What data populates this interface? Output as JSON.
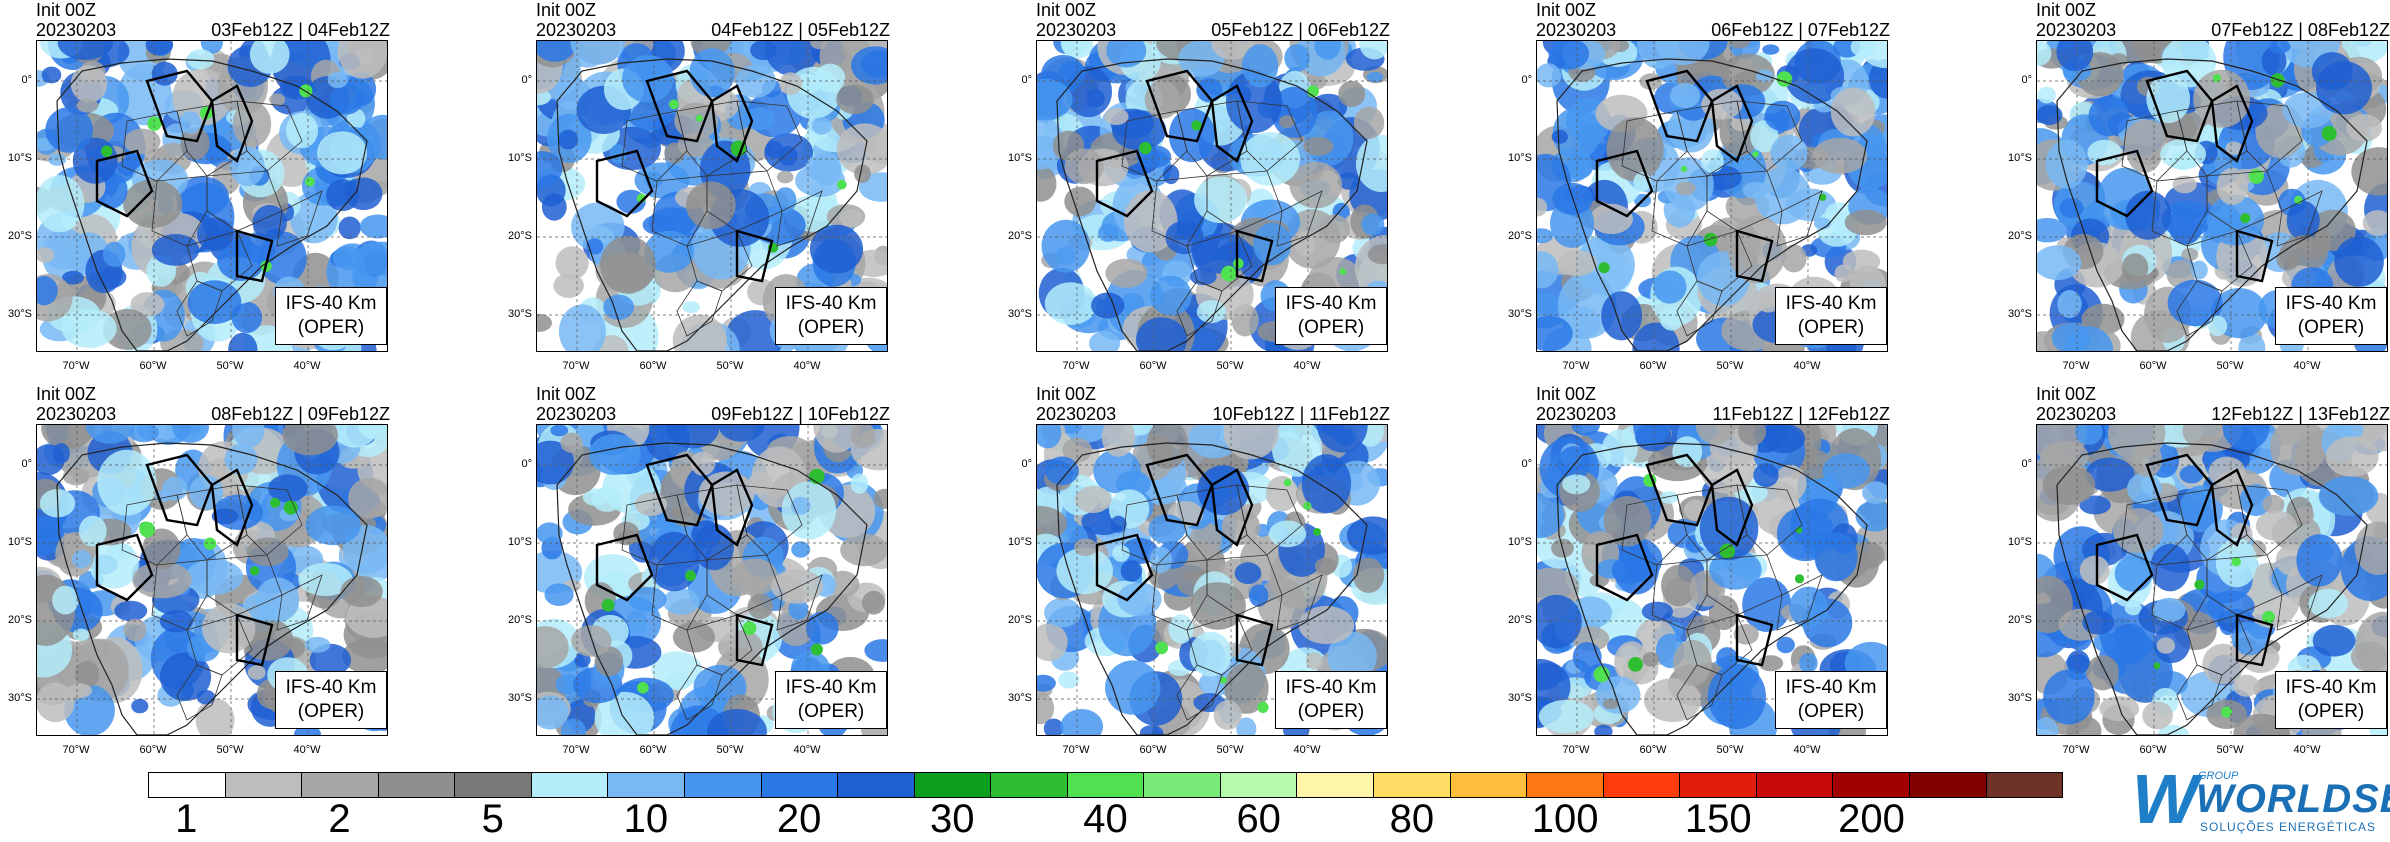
{
  "panels": [
    {
      "init": "Init 00Z",
      "date": "20230203",
      "valid": "03Feb12Z | 04Feb12Z",
      "model": "IFS-40 Km",
      "mode": "(OPER)"
    },
    {
      "init": "Init 00Z",
      "date": "20230203",
      "valid": "04Feb12Z | 05Feb12Z",
      "model": "IFS-40 Km",
      "mode": "(OPER)"
    },
    {
      "init": "Init 00Z",
      "date": "20230203",
      "valid": "05Feb12Z | 06Feb12Z",
      "model": "IFS-40 Km",
      "mode": "(OPER)"
    },
    {
      "init": "Init 00Z",
      "date": "20230203",
      "valid": "06Feb12Z | 07Feb12Z",
      "model": "IFS-40 Km",
      "mode": "(OPER)"
    },
    {
      "init": "Init 00Z",
      "date": "20230203",
      "valid": "07Feb12Z | 08Feb12Z",
      "model": "IFS-40 Km",
      "mode": "(OPER)"
    },
    {
      "init": "Init 00Z",
      "date": "20230203",
      "valid": "08Feb12Z | 09Feb12Z",
      "model": "IFS-40 Km",
      "mode": "(OPER)"
    },
    {
      "init": "Init 00Z",
      "date": "20230203",
      "valid": "09Feb12Z | 10Feb12Z",
      "model": "IFS-40 Km",
      "mode": "(OPER)"
    },
    {
      "init": "Init 00Z",
      "date": "20230203",
      "valid": "10Feb12Z | 11Feb12Z",
      "model": "IFS-40 Km",
      "mode": "(OPER)"
    },
    {
      "init": "Init 00Z",
      "date": "20230203",
      "valid": "11Feb12Z | 12Feb12Z",
      "model": "IFS-40 Km",
      "mode": "(OPER)"
    },
    {
      "init": "Init 00Z",
      "date": "20230203",
      "valid": "12Feb12Z | 13Feb12Z",
      "model": "IFS-40 Km",
      "mode": "(OPER)"
    }
  ],
  "lat_labels": [
    "0°",
    "10°S",
    "20°S",
    "30°S"
  ],
  "lon_labels": [
    "70°W",
    "60°W",
    "50°W",
    "40°W"
  ],
  "colorbar": {
    "colors": [
      "#ffffff",
      "#bdbdbd",
      "#a6a6a6",
      "#8f8f8f",
      "#787878",
      "#b4ecfa",
      "#78b9f5",
      "#4696f0",
      "#2a78e6",
      "#1e5fd2",
      "#0e9e1e",
      "#2ebe32",
      "#50e150",
      "#78eb78",
      "#b4faaa",
      "#fff5aa",
      "#ffdc64",
      "#ffbe3c",
      "#ff7814",
      "#ff3c0a",
      "#e11e0a",
      "#c80a0a",
      "#a00000",
      "#820000",
      "#6e3228"
    ],
    "labels": [
      "1",
      "2",
      "5",
      "10",
      "20",
      "30",
      "40",
      "60",
      "80",
      "100",
      "150",
      "200"
    ]
  },
  "logo": {
    "group": "GROUP",
    "name": "WORLDSE",
    "subtitle": "SOLUÇÕES ENERGÉTICAS",
    "mark": "W"
  }
}
